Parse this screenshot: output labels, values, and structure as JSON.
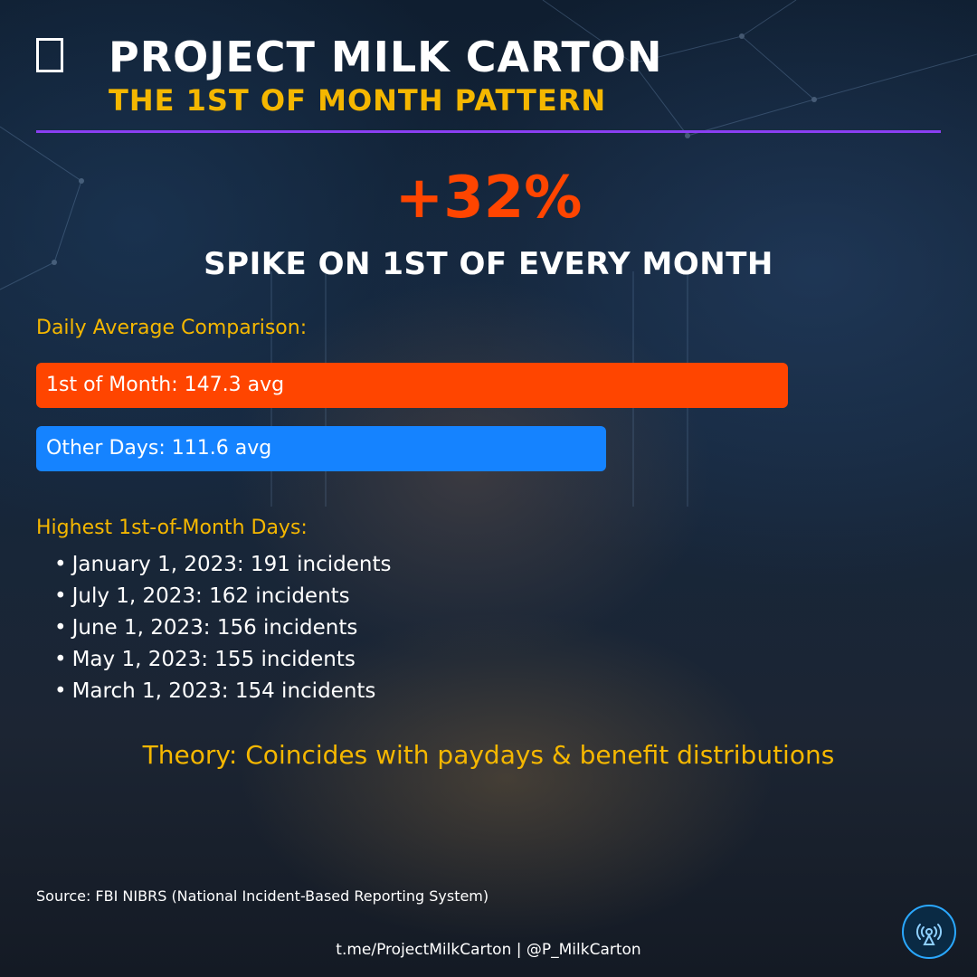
{
  "header": {
    "icon": "document-icon",
    "title": "PROJECT MILK CARTON",
    "subtitle": "THE 1ST OF MONTH PATTERN"
  },
  "headline": {
    "stat": "+32%",
    "caption": "SPIKE ON 1ST OF EVERY MONTH"
  },
  "chart_data": {
    "type": "bar",
    "orientation": "horizontal",
    "title": "Daily Average Comparison:",
    "categories": [
      "1st of Month",
      "Other Days"
    ],
    "values": [
      147.3,
      111.6
    ],
    "labels": [
      "1st of Month: 147.3 avg",
      "Other Days: 111.6 avg"
    ],
    "colors": [
      "#ff4500",
      "#1583ff"
    ],
    "grid": false,
    "legend": "none"
  },
  "highest": {
    "label": "Highest 1st-of-Month Days:",
    "items": [
      "January 1, 2023: 191 incidents",
      "July 1, 2023: 162 incidents",
      "June 1, 2023: 156 incidents",
      "May 1, 2023: 155 incidents",
      "March 1, 2023: 154 incidents"
    ]
  },
  "theory": "Theory: Coincides with paydays & benefit distributions",
  "source": "Source: FBI NIBRS (National Incident-Based Reporting System)",
  "footer": "t.me/ProjectMilkCarton | @P_MilkCarton",
  "badge_icon": "broadcast-icon"
}
